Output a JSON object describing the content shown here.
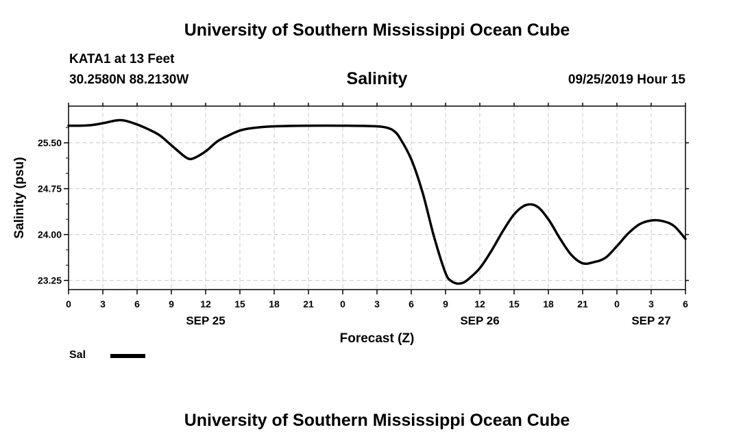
{
  "header": {
    "title": "University of Southern Mississippi Ocean Cube",
    "station": "KATA1 at 13 Feet",
    "coords": "30.2580N 88.2130W",
    "chart_title": "Salinity",
    "datetime": "09/25/2019 Hour 15"
  },
  "footer": {
    "title": "University of Southern Mississippi Ocean Cube"
  },
  "legend": {
    "label": "Sal",
    "color": "#000000"
  },
  "chart_data": {
    "type": "line",
    "title": "Salinity",
    "xlabel": "Forecast (Z)",
    "ylabel": "Salinity (psu)",
    "x_unit": "hours since SEP 25 00Z",
    "xlim": [
      0,
      54
    ],
    "ylim": [
      23.1,
      26.1
    ],
    "grid": true,
    "x_ticks": [
      {
        "x": 0,
        "label": "0"
      },
      {
        "x": 3,
        "label": "3"
      },
      {
        "x": 6,
        "label": "6"
      },
      {
        "x": 9,
        "label": "9"
      },
      {
        "x": 12,
        "label": "12"
      },
      {
        "x": 15,
        "label": "15"
      },
      {
        "x": 18,
        "label": "18"
      },
      {
        "x": 21,
        "label": "21"
      },
      {
        "x": 24,
        "label": "0"
      },
      {
        "x": 27,
        "label": "3"
      },
      {
        "x": 30,
        "label": "6"
      },
      {
        "x": 33,
        "label": "9"
      },
      {
        "x": 36,
        "label": "12"
      },
      {
        "x": 39,
        "label": "15"
      },
      {
        "x": 42,
        "label": "18"
      },
      {
        "x": 45,
        "label": "21"
      },
      {
        "x": 48,
        "label": "0"
      },
      {
        "x": 51,
        "label": "3"
      },
      {
        "x": 54,
        "label": "6"
      }
    ],
    "date_labels": [
      {
        "x": 12,
        "label": "SEP 25"
      },
      {
        "x": 36,
        "label": "SEP 26"
      },
      {
        "x": 51,
        "label": "SEP 27"
      }
    ],
    "y_ticks": [
      {
        "y": 25.5,
        "label": "25.50"
      },
      {
        "y": 24.75,
        "label": "24.75"
      },
      {
        "y": 24.0,
        "label": "24.00"
      },
      {
        "y": 23.25,
        "label": "23.25"
      }
    ],
    "y_minor_ticks": [
      25.75,
      25.25,
      25.0,
      24.5,
      24.25,
      23.75,
      23.5
    ],
    "series": [
      {
        "name": "Sal",
        "x": [
          0,
          1,
          2,
          3,
          4,
          4.5,
          5,
          6,
          7,
          8,
          9,
          10,
          10.5,
          11,
          12,
          13,
          14,
          15,
          16,
          18,
          21,
          24,
          27,
          28,
          28.5,
          29,
          30,
          31,
          32,
          33,
          33.5,
          34,
          34.5,
          35,
          36,
          37,
          38,
          39,
          40,
          41,
          42,
          43,
          44,
          45,
          46,
          47,
          48,
          49,
          50,
          51,
          52,
          53,
          54
        ],
        "y": [
          25.78,
          25.78,
          25.79,
          25.82,
          25.86,
          25.87,
          25.86,
          25.8,
          25.72,
          25.62,
          25.46,
          25.3,
          25.24,
          25.25,
          25.36,
          25.52,
          25.62,
          25.7,
          25.74,
          25.77,
          25.78,
          25.78,
          25.77,
          25.74,
          25.69,
          25.58,
          25.23,
          24.68,
          23.96,
          23.37,
          23.24,
          23.2,
          23.21,
          23.27,
          23.45,
          23.73,
          24.05,
          24.33,
          24.48,
          24.46,
          24.25,
          23.94,
          23.67,
          23.53,
          23.55,
          23.62,
          23.81,
          24.02,
          24.17,
          24.23,
          24.22,
          24.14,
          23.93
        ]
      }
    ]
  }
}
